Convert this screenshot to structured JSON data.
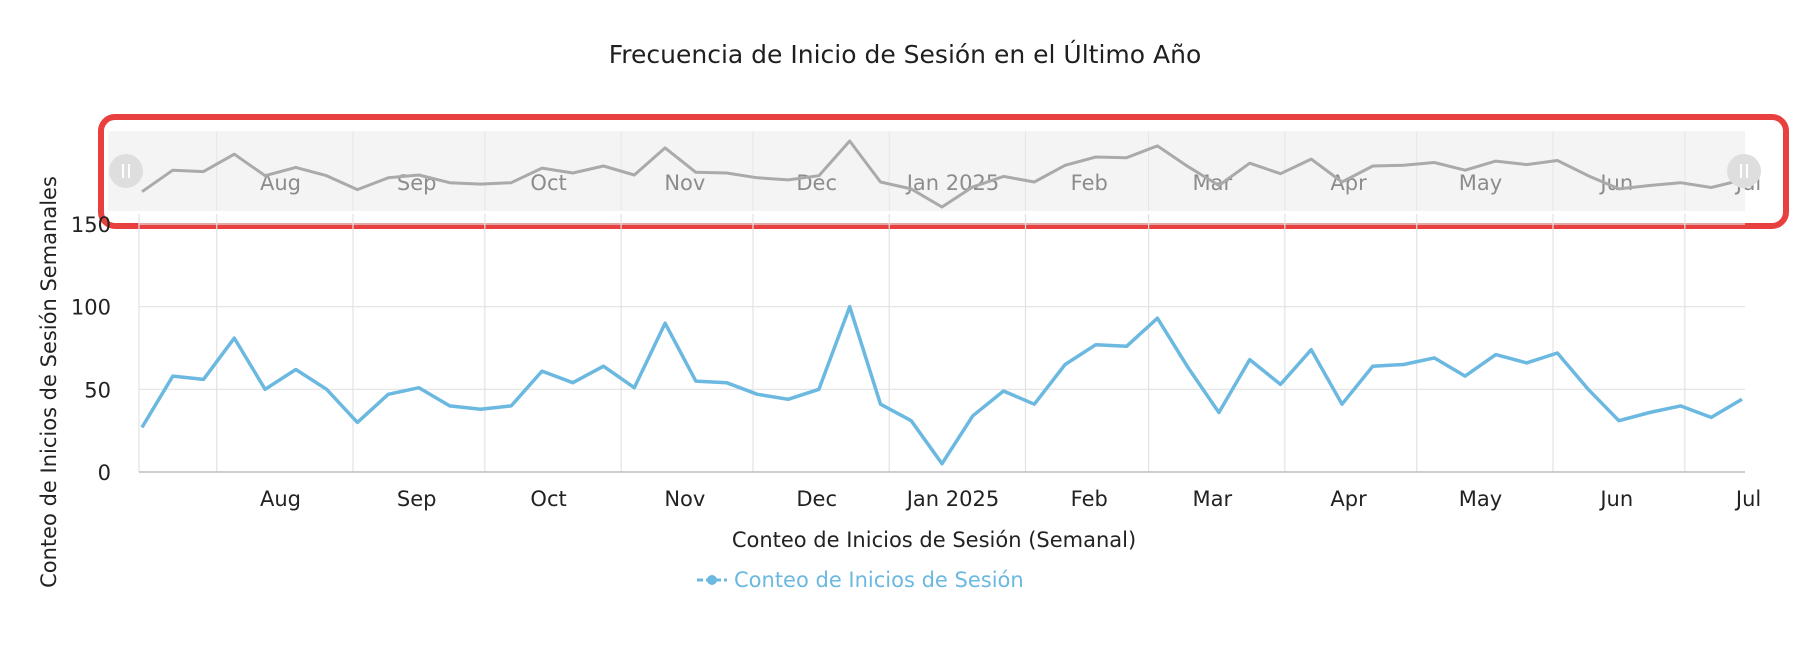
{
  "chart_data": {
    "type": "line",
    "title": "Frecuencia de Inicio de Sesión en el Último Año",
    "xlabel": "Conteo de Inicios de Sesión (Semanal)",
    "ylabel": "Conteo de Inicios de Sesión Semanales",
    "ylim": [
      0,
      150
    ],
    "y_ticks": [
      0,
      50,
      100,
      150
    ],
    "x_start": "2024-07-15",
    "x_interval_days": 7,
    "x_tick_labels": [
      "Aug",
      "Sep",
      "Oct",
      "Nov",
      "Dec",
      "Jan 2025",
      "Feb",
      "Mar",
      "Apr",
      "May",
      "Jun",
      "Jul"
    ],
    "grid": true,
    "legend_position": "bottom",
    "series": [
      {
        "name": "Conteo de Inicios de Sesión",
        "color": "#6bb8e0",
        "values": [
          27,
          58,
          56,
          81,
          50,
          62,
          50,
          30,
          47,
          51,
          40,
          38,
          40,
          61,
          54,
          64,
          51,
          90,
          55,
          54,
          47,
          44,
          50,
          100,
          41,
          31,
          5,
          34,
          49,
          41,
          65,
          77,
          76,
          93,
          63,
          36,
          68,
          53,
          74,
          41,
          64,
          65,
          69,
          58,
          71,
          66,
          72,
          50,
          31,
          36,
          40,
          33,
          44
        ]
      }
    ],
    "navigator": {
      "line_color": "#aaaaaa",
      "highlighted": true,
      "highlight_color": "#e8403e"
    }
  }
}
